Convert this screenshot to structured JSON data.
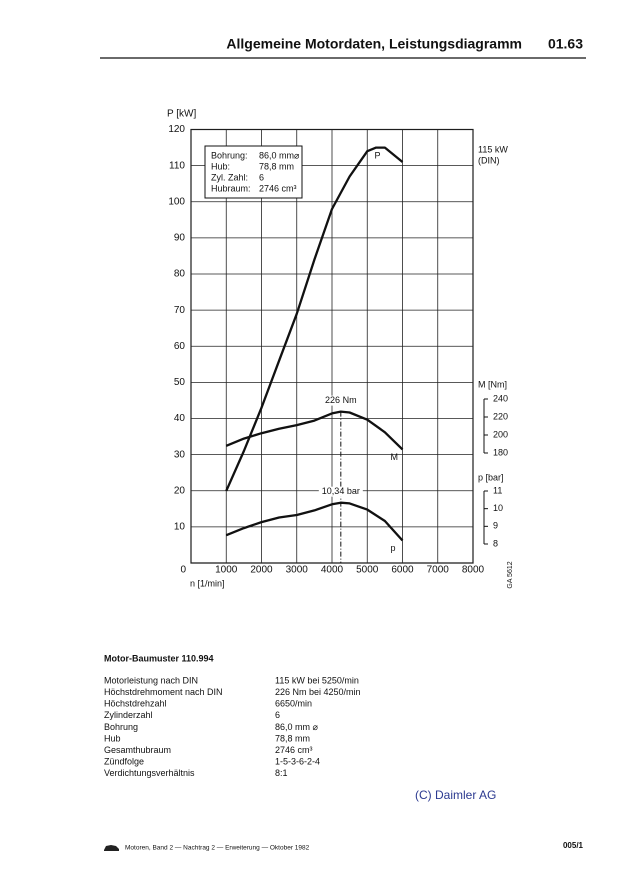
{
  "header": {
    "title": "Allgemeine Motordaten, Leistungsdiagramm",
    "page": "01.63"
  },
  "chart_data": {
    "type": "line",
    "x_label": "n [1/min]",
    "y_label": "P [kW]",
    "y2_label": "M [Nm]",
    "y3_label": "p [bar]",
    "xlim": [
      0,
      8000
    ],
    "xticks": [
      0,
      1000,
      2000,
      3000,
      4000,
      5000,
      6000,
      7000,
      8000
    ],
    "ylim": [
      0,
      120
    ],
    "yticks": [
      10,
      20,
      30,
      40,
      50,
      60,
      70,
      80,
      90,
      100,
      110,
      120
    ],
    "y2lim": [
      180,
      240
    ],
    "y2ticks": [
      180,
      200,
      220,
      240
    ],
    "y3lim": [
      8,
      11
    ],
    "y3ticks": [
      8,
      9,
      10,
      11
    ],
    "grid": true,
    "series": [
      {
        "name": "P",
        "color": "#111111",
        "x": [
          1000,
          1500,
          2000,
          2500,
          3000,
          3500,
          4000,
          4500,
          5000,
          5250,
          5500,
          6000
        ],
        "values": [
          20,
          31,
          43,
          56,
          69,
          84,
          98,
          107,
          114,
          115,
          115,
          111
        ]
      },
      {
        "name": "M",
        "color": "#111111",
        "axis": "y2",
        "x": [
          1000,
          1500,
          2000,
          2500,
          3000,
          3500,
          4000,
          4250,
          4500,
          5000,
          5500,
          6000
        ],
        "values": [
          188,
          196,
          202,
          207,
          211,
          216,
          224,
          226,
          225,
          217,
          203,
          184
        ]
      },
      {
        "name": "p",
        "color": "#111111",
        "axis": "y3",
        "x": [
          1000,
          1500,
          2000,
          2500,
          3000,
          3500,
          4000,
          4250,
          4500,
          5000,
          5500,
          6000
        ],
        "values": [
          8.5,
          8.9,
          9.24,
          9.5,
          9.64,
          9.9,
          10.25,
          10.34,
          10.3,
          9.95,
          9.3,
          8.2
        ]
      }
    ],
    "annotations": [
      "226 Nm",
      "10,34 bar"
    ],
    "max_label": [
      "115 kW",
      "(DIN)"
    ],
    "info_box": [
      [
        "Bohrung:",
        "86,0 mm⌀"
      ],
      [
        "Hub:",
        "78,8 mm"
      ],
      [
        "Zyl. Zahl:",
        "6"
      ],
      [
        "Hubraum:",
        "2746 cm³"
      ]
    ],
    "code": "GA 5612"
  },
  "engine": {
    "title": "Motor-Baumuster 110.994",
    "rows": [
      [
        "Motorleistung nach DIN",
        "115 kW bei 5250/min"
      ],
      [
        "Höchstdrehmoment nach DIN",
        "226 Nm bei 4250/min"
      ],
      [
        "Höchstdrehzahl",
        "6650/min"
      ],
      [
        "Zylinderzahl",
        "6"
      ],
      [
        "Bohrung",
        "86,0 mm ⌀"
      ],
      [
        "Hub",
        "78,8 mm"
      ],
      [
        "Gesamthubraum",
        "2746 cm³"
      ],
      [
        "Zündfolge",
        "1-5-3-6-2-4"
      ],
      [
        "Verdichtungsverhältnis",
        "8:1"
      ]
    ]
  },
  "copyright": "(C) Daimler AG",
  "footer": {
    "text": "Motoren, Band 2 — Nachtrag 2 — Erweiterung — Oktober 1982",
    "page": "005/1"
  }
}
